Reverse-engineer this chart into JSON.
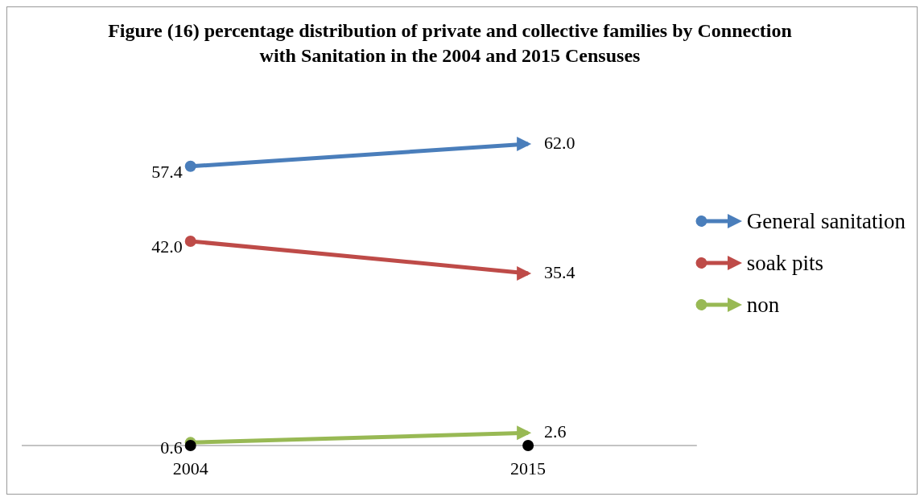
{
  "chart_data": {
    "type": "line",
    "title": "Figure (16) percentage distribution of private and collective families by Connection with Sanitation in the 2004 and 2015 Censuses",
    "categories": [
      "2004",
      "2015"
    ],
    "tick_labels": "x",
    "legend": "right",
    "marker": "circle",
    "series": [
      {
        "name": "General sanitation",
        "color": "#4a7ebb",
        "values": [
          57.4,
          62.0
        ],
        "value_labels": [
          "57.4",
          "62.0"
        ]
      },
      {
        "name": "soak pits",
        "color": "#be4b48",
        "values": [
          42.0,
          35.4
        ],
        "value_labels": [
          "42.0",
          "35.4"
        ]
      },
      {
        "name": "non",
        "color": "#98b954",
        "values": [
          0.6,
          2.6
        ],
        "value_labels": [
          "0.6",
          "2.6"
        ]
      },
      {
        "type": "scatter",
        "color": "#000000",
        "values": [
          0,
          0
        ]
      }
    ]
  }
}
